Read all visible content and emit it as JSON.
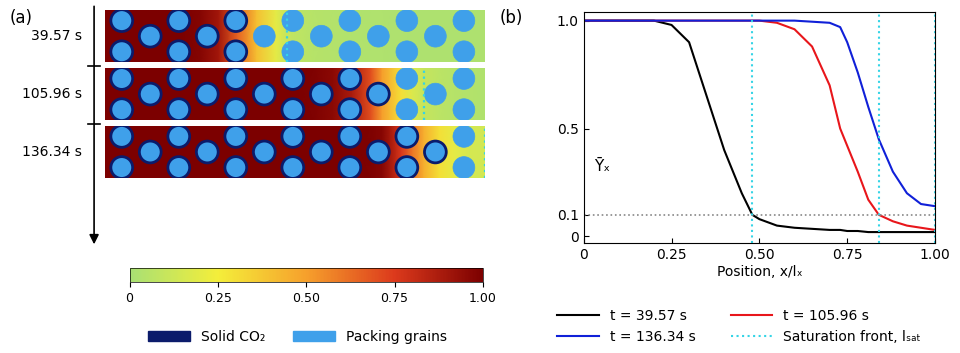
{
  "chart_data": [
    {
      "type": "field_strips",
      "panel": "(a)",
      "times": [
        "39.57 s",
        "105.96 s",
        "136.34 s"
      ],
      "colorbar": {
        "range": [
          0,
          1
        ],
        "ticks": [
          0,
          0.25,
          {
            "value": 0.5,
            "label": "0.50"
          },
          0.75,
          {
            "value": 1,
            "label": "1.00"
          }
        ]
      },
      "legend_entries": [
        {
          "name": "Solid CO₂",
          "color": "#0b1b6b"
        },
        {
          "name": "Packing grains",
          "color": "#3fa0ea"
        }
      ]
    },
    {
      "type": "line",
      "panel": "(b)",
      "xlabel": "Position, x/lₓ",
      "ylabel": "Ȳₓ",
      "x": [
        0,
        0.1,
        0.2,
        0.25,
        0.3,
        0.35,
        0.4,
        0.45,
        0.48,
        0.5,
        0.55,
        0.6,
        0.65,
        0.7,
        0.73,
        0.75,
        0.78,
        0.81,
        0.84,
        0.88,
        0.92,
        0.96,
        1.0
      ],
      "series": [
        {
          "name": "t = 39.57 s",
          "color": "#000000",
          "values": [
            1.0,
            1.0,
            1.0,
            0.98,
            0.9,
            0.65,
            0.4,
            0.2,
            0.1,
            0.08,
            0.05,
            0.04,
            0.035,
            0.03,
            0.03,
            0.025,
            0.025,
            0.02,
            0.02,
            0.02,
            0.02,
            0.02,
            0.02
          ]
        },
        {
          "name": "t = 105.96 s",
          "color": "#e8161b",
          "values": [
            1.0,
            1.0,
            1.0,
            1.0,
            1.0,
            1.0,
            1.0,
            1.0,
            1.0,
            1.0,
            0.99,
            0.96,
            0.88,
            0.7,
            0.5,
            0.42,
            0.3,
            0.17,
            0.1,
            0.07,
            0.05,
            0.04,
            0.03
          ]
        },
        {
          "name": "t = 136.34 s",
          "color": "#1020d8",
          "values": [
            1.0,
            1.0,
            1.0,
            1.0,
            1.0,
            1.0,
            1.0,
            1.0,
            1.0,
            1.0,
            1.0,
            1.0,
            0.995,
            0.99,
            0.97,
            0.9,
            0.76,
            0.6,
            0.45,
            0.3,
            0.2,
            0.15,
            0.14
          ]
        }
      ],
      "xlim": [
        0,
        1
      ],
      "ylim": [
        -0.03,
        1.04
      ],
      "xticks": [
        0,
        0.25,
        {
          "value": 0.5,
          "label": "0.50"
        },
        0.75,
        {
          "value": 1,
          "label": "1.00"
        }
      ],
      "yticks": [
        0,
        0.1,
        0.5,
        {
          "value": 1,
          "label": "1.0"
        }
      ],
      "reference_line": 0.1,
      "saturation_front": {
        "name": "Saturation front, lₛₐₜ",
        "color": "#35d4e6",
        "values": [
          0.48,
          0.84,
          1.0
        ]
      }
    }
  ]
}
